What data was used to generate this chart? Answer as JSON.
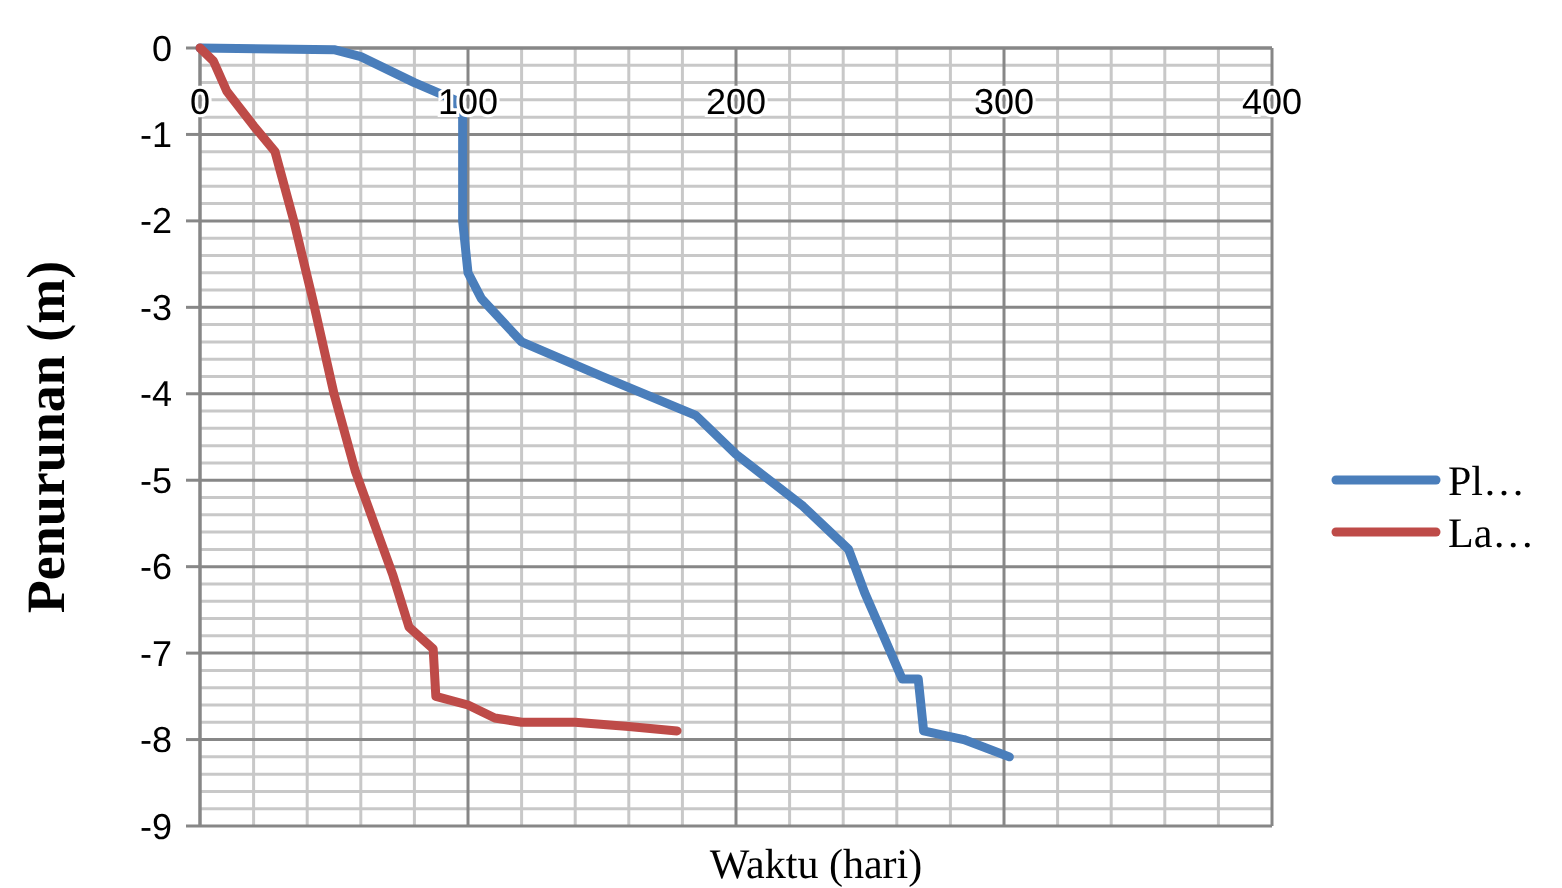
{
  "chart_data": {
    "type": "line",
    "xlabel": "Waktu (hari)",
    "ylabel": "Penurunan (m)",
    "xlim": [
      0,
      400
    ],
    "xticks": [
      0,
      100,
      200,
      300,
      400
    ],
    "ylim": [
      -9,
      0
    ],
    "yticks": [
      -9,
      -8,
      -7,
      -6,
      -5,
      -4,
      -3,
      -2,
      -1,
      0
    ],
    "grid": true,
    "legend": "right",
    "line_style": "solid",
    "series": [
      {
        "name": "Pl…",
        "color": "#4a7ebb",
        "x": [
          0,
          50,
          60,
          80,
          95,
          98,
          98,
          100,
          105,
          120,
          150,
          185,
          200,
          225,
          242,
          248,
          255,
          262,
          268,
          270,
          285,
          302
        ],
        "values": [
          0,
          -0.02,
          -0.1,
          -0.4,
          -0.6,
          -0.8,
          -2,
          -2.6,
          -2.9,
          -3.4,
          -3.8,
          -4.25,
          -4.7,
          -5.3,
          -5.8,
          -6.3,
          -6.8,
          -7.3,
          -7.3,
          -7.9,
          -8,
          -8.2
        ]
      },
      {
        "name": "La…",
        "color": "#be4b48",
        "x": [
          0,
          5,
          10,
          20,
          28,
          35,
          42,
          50,
          58,
          65,
          72,
          78,
          87,
          88,
          100,
          110,
          120,
          140,
          160,
          178
        ],
        "values": [
          0,
          -0.15,
          -0.5,
          -0.9,
          -1.2,
          -2,
          -2.9,
          -4,
          -4.9,
          -5.5,
          -6.1,
          -6.7,
          -6.95,
          -7.5,
          -7.6,
          -7.75,
          -7.8,
          -7.8,
          -7.85,
          -7.9
        ]
      }
    ]
  }
}
